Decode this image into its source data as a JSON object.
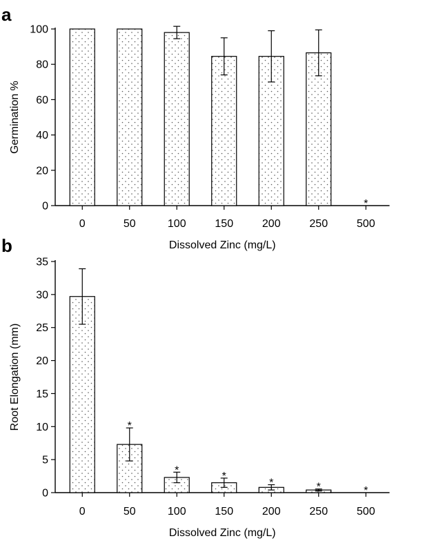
{
  "chart_data": [
    {
      "panel": "a",
      "type": "bar",
      "categories": [
        "0",
        "50",
        "100",
        "150",
        "200",
        "250",
        "500"
      ],
      "values": [
        100,
        100,
        98,
        84.5,
        84.5,
        86.5,
        0
      ],
      "errors": [
        0,
        0,
        3.5,
        10.5,
        14.5,
        13,
        0
      ],
      "significant": [
        false,
        false,
        false,
        false,
        false,
        false,
        true
      ],
      "significance_marker": "*",
      "xlabel": "Dissolved Zinc (mg/L)",
      "ylabel": "Germination %",
      "ylim": [
        0,
        100
      ],
      "yticks": [
        0,
        20,
        40,
        60,
        80,
        100
      ],
      "bar_fill": "#e6e6e6",
      "grid": false
    },
    {
      "panel": "b",
      "type": "bar",
      "categories": [
        "0",
        "50",
        "100",
        "150",
        "200",
        "250",
        "500"
      ],
      "values": [
        29.7,
        7.3,
        2.3,
        1.5,
        0.8,
        0.4,
        0
      ],
      "errors": [
        4.2,
        2.5,
        0.8,
        0.7,
        0.4,
        0.15,
        0
      ],
      "significant": [
        false,
        true,
        true,
        true,
        true,
        true,
        true
      ],
      "significance_marker": "*",
      "xlabel": "Dissolved Zinc (mg/L)",
      "ylabel": "Root Elongation (mm)",
      "ylim": [
        0,
        35
      ],
      "yticks": [
        0,
        5,
        10,
        15,
        20,
        25,
        30,
        35
      ],
      "bar_fill": "#e6e6e6",
      "grid": false
    }
  ]
}
